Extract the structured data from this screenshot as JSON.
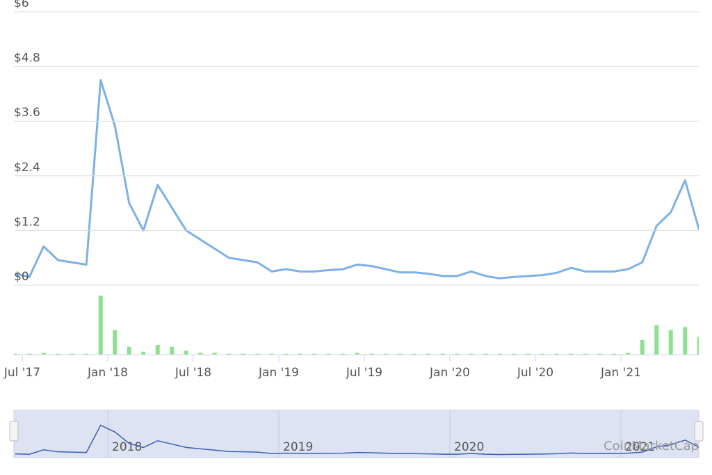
{
  "chart_data": {
    "type": "line",
    "x": [
      "2017-06",
      "2017-07",
      "2017-08",
      "2017-09",
      "2017-10",
      "2017-11",
      "2017-12",
      "2018-01",
      "2018-02",
      "2018-03",
      "2018-04",
      "2018-05",
      "2018-06",
      "2018-07",
      "2018-08",
      "2018-09",
      "2018-10",
      "2018-11",
      "2018-12",
      "2019-01",
      "2019-02",
      "2019-03",
      "2019-04",
      "2019-05",
      "2019-06",
      "2019-07",
      "2019-08",
      "2019-09",
      "2019-10",
      "2019-11",
      "2019-12",
      "2020-01",
      "2020-02",
      "2020-03",
      "2020-04",
      "2020-05",
      "2020-06",
      "2020-07",
      "2020-08",
      "2020-09",
      "2020-10",
      "2020-11",
      "2020-12",
      "2021-01",
      "2021-02",
      "2021-03",
      "2021-04",
      "2021-05",
      "2021-06"
    ],
    "series": [
      {
        "color": "#7cb0e8",
        "values": [
          0.25,
          0.18,
          0.85,
          0.55,
          0.5,
          0.45,
          4.5,
          3.5,
          1.8,
          1.2,
          2.2,
          1.7,
          1.2,
          1.0,
          0.8,
          0.6,
          0.55,
          0.5,
          0.3,
          0.35,
          0.3,
          0.3,
          0.33,
          0.35,
          0.45,
          0.42,
          0.35,
          0.28,
          0.28,
          0.25,
          0.2,
          0.2,
          0.3,
          0.2,
          0.15,
          0.18,
          0.2,
          0.22,
          0.27,
          0.38,
          0.3,
          0.3,
          0.3,
          0.35,
          0.5,
          1.3,
          1.6,
          2.3,
          1.2
        ]
      }
    ],
    "volume": {
      "color": "#8ee08e",
      "values": [
        1,
        1,
        2,
        1,
        1,
        1,
        60,
        25,
        8,
        3,
        10,
        8,
        4,
        2,
        2,
        1,
        1,
        1,
        1,
        1,
        1,
        1,
        1,
        1,
        2,
        1,
        1,
        1,
        1,
        1,
        1,
        1,
        1,
        1,
        1,
        1,
        1,
        1,
        1,
        1,
        1,
        1,
        1,
        2,
        15,
        30,
        25,
        28,
        18
      ]
    },
    "ylim": [
      0,
      6
    ],
    "yticks": [
      {
        "value": 0,
        "label": "$0"
      },
      {
        "value": 1.2,
        "label": "$1.2"
      },
      {
        "value": 2.4,
        "label": "$2.4"
      },
      {
        "value": 3.6,
        "label": "$3.6"
      },
      {
        "value": 4.8,
        "label": "$4.8"
      },
      {
        "value": 6,
        "label": "$6"
      }
    ],
    "xticks": [
      {
        "value": "2017-07",
        "label": "Jul '17"
      },
      {
        "value": "2018-01",
        "label": "Jan '18"
      },
      {
        "value": "2018-07",
        "label": "Jul '18"
      },
      {
        "value": "2019-01",
        "label": "Jan '19"
      },
      {
        "value": "2019-07",
        "label": "Jul '19"
      },
      {
        "value": "2020-01",
        "label": "Jan '20"
      },
      {
        "value": "2020-07",
        "label": "Jul '20"
      },
      {
        "value": "2021-01",
        "label": "Jan '21"
      }
    ],
    "navigator": {
      "color": "#3a5fb0",
      "xticks": [
        {
          "value": "2018-01",
          "label": "2018"
        },
        {
          "value": "2019-01",
          "label": "2019"
        },
        {
          "value": "2020-01",
          "label": "2020"
        },
        {
          "value": "2021-01",
          "label": "2021"
        }
      ]
    },
    "watermark": "CoinMarketCap",
    "grid": true
  }
}
